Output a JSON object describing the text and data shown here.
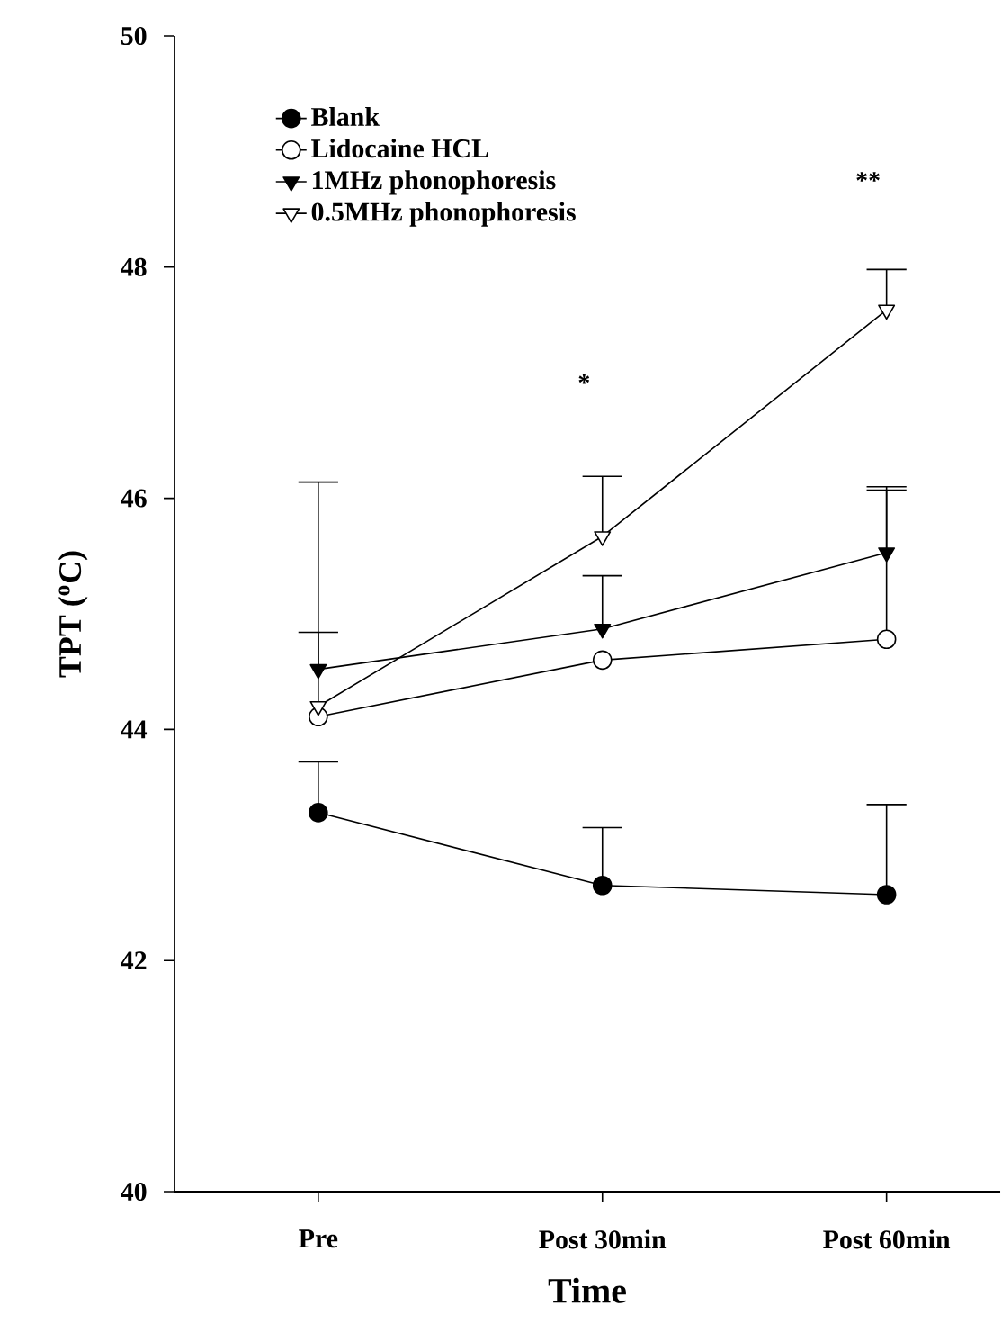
{
  "chart_data": {
    "type": "line",
    "xlabel": "Time",
    "ylabel": "TPT ($^{o}$C)",
    "categories": [
      "Pre",
      "Post 30min",
      "Post 60min"
    ],
    "series": [
      {
        "name": "Blank",
        "color": "#000000",
        "marker": "circle",
        "values": [
          43.28,
          42.65,
          42.57
        ],
        "errors": [
          [
            43.28,
            43.72
          ],
          [
            42.65,
            43.15
          ],
          [
            42.57,
            43.35
          ]
        ]
      },
      {
        "name": "Lidocaine HCL",
        "color": "#000000",
        "marker": "circle",
        "values": [
          44.11,
          44.6,
          44.78
        ],
        "errors": [
          null,
          null,
          [
            44.78,
            46.1
          ]
        ]
      },
      {
        "name": "1MHz phonophoresis",
        "color": "#000000",
        "marker": "triangle",
        "values": [
          44.52,
          44.87,
          45.53
        ],
        "errors": [
          [
            44.52,
            44.84
          ],
          [
            44.87,
            45.33
          ],
          [
            45.53,
            46.07
          ]
        ]
      },
      {
        "name": "0.5MHz phonophoresis",
        "color": "#000000",
        "marker": "triangle",
        "values": [
          44.2,
          45.67,
          47.63
        ],
        "errors": [
          [
            44.2,
            46.14
          ],
          [
            45.67,
            46.19
          ],
          [
            47.63,
            47.98
          ]
        ]
      }
    ],
    "ylim": [
      40,
      50
    ],
    "yticks": [
      40,
      42,
      44,
      46,
      48,
      50
    ],
    "legend": "top left",
    "grid": false,
    "line_style": "solid",
    "annotations": [
      "*",
      "**"
    ]
  }
}
